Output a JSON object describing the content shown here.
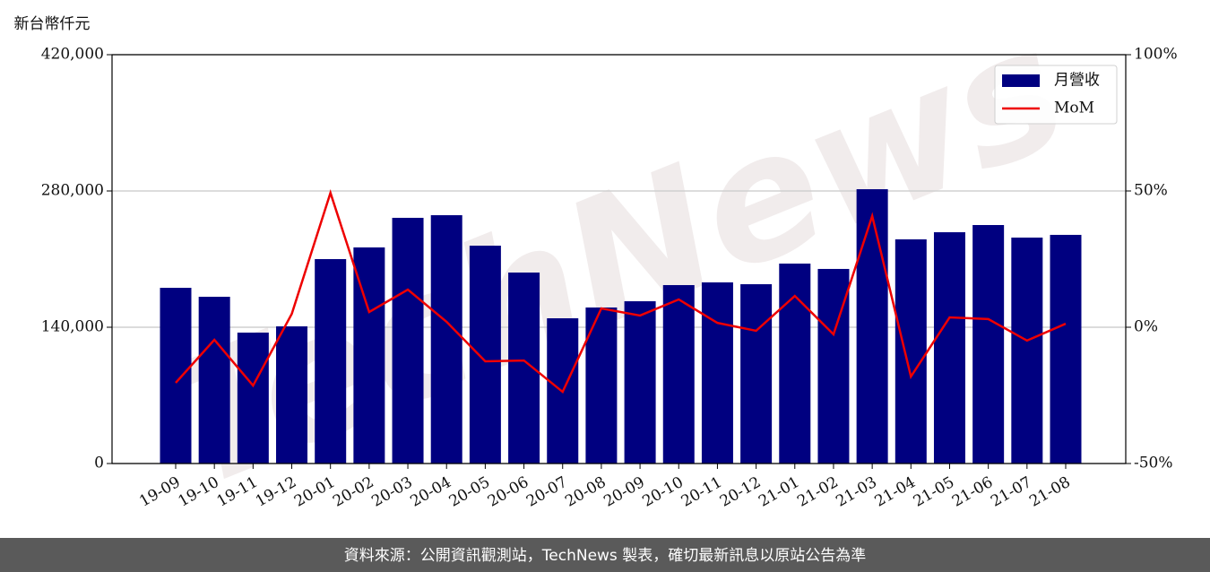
{
  "chart_data": {
    "type": "bar_line",
    "y_label": "新台幣仟元",
    "watermark": "TechNews",
    "footer": "資料來源：公開資訊觀測站，TechNews 製表，確切最新訊息以原站公告為準",
    "categories": [
      "19-09",
      "19-10",
      "19-11",
      "19-12",
      "20-01",
      "20-02",
      "20-03",
      "20-04",
      "20-05",
      "20-06",
      "20-07",
      "20-08",
      "20-09",
      "20-10",
      "20-11",
      "20-12",
      "21-01",
      "21-02",
      "21-03",
      "21-04",
      "21-05",
      "21-06",
      "21-07",
      "21-08"
    ],
    "series": [
      {
        "name": "月營收",
        "type": "bar",
        "color": "#000080",
        "values": [
          180500,
          171300,
          134500,
          140900,
          210000,
          222000,
          252400,
          255100,
          223800,
          196200,
          149200,
          160300,
          166700,
          183300,
          186100,
          184200,
          205400,
          199900,
          281800,
          230300,
          237600,
          245000,
          232100,
          234900
        ]
      },
      {
        "name": "MoM",
        "type": "line",
        "axis": "y2",
        "color": "#ee0000",
        "values": [
          -20.4,
          -4.6,
          -21.4,
          4.9,
          49.3,
          5.6,
          13.8,
          2.0,
          -12.5,
          -12.2,
          -23.7,
          6.9,
          4.3,
          10.2,
          1.6,
          -1.3,
          11.5,
          -2.6,
          40.8,
          -18.1,
          3.6,
          3.0,
          -4.9,
          1.3
        ]
      }
    ],
    "ylim": [
      0,
      420000
    ],
    "yticks": [
      0,
      {
        "value": 140000,
        "label": "140,000"
      },
      {
        "value": 280000,
        "label": "280,000"
      },
      {
        "value": 420000,
        "label": "420,000"
      }
    ],
    "y2lim": [
      -50,
      100
    ],
    "y2ticks": [
      {
        "value": -50,
        "label": "-50%"
      },
      {
        "value": 0,
        "label": "0%"
      },
      {
        "value": 50,
        "label": "50%"
      },
      {
        "value": 100,
        "label": "100%"
      }
    ],
    "grid": true,
    "legend": "upper right"
  }
}
